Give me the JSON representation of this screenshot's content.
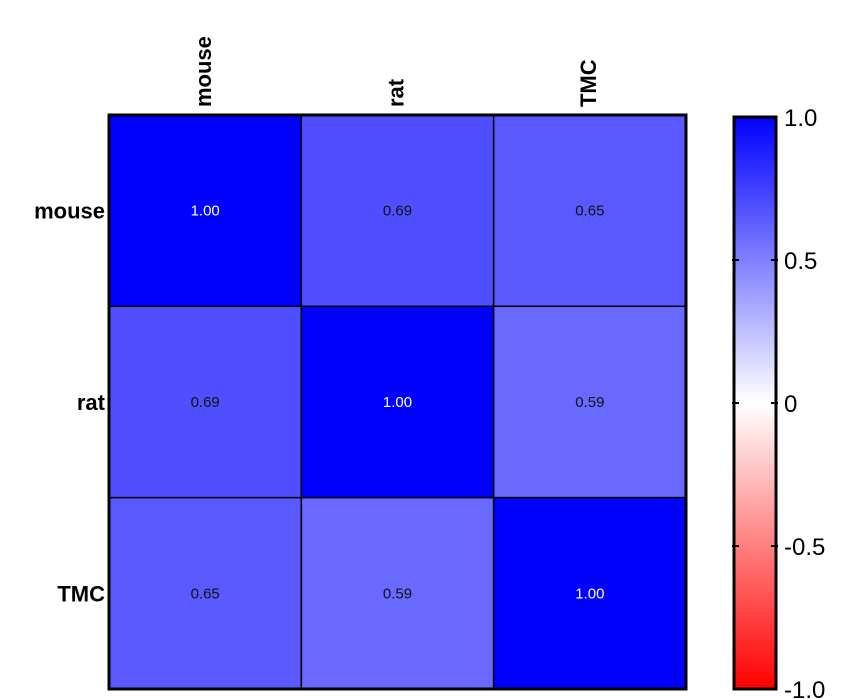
{
  "chart_data": {
    "type": "heatmap",
    "title": "",
    "xlabel": "",
    "ylabel": "",
    "x_categories": [
      "mouse",
      "rat",
      "TMC"
    ],
    "y_categories": [
      "mouse",
      "rat",
      "TMC"
    ],
    "values": [
      [
        1.0,
        0.69,
        0.65
      ],
      [
        0.69,
        1.0,
        0.59
      ],
      [
        0.65,
        0.59,
        1.0
      ]
    ],
    "cell_labels": [
      [
        "1.00",
        "0.69",
        "0.65"
      ],
      [
        "0.69",
        "1.00",
        "0.59"
      ],
      [
        "0.65",
        "0.59",
        "1.00"
      ]
    ],
    "colorbar": {
      "range": [
        -1.0,
        1.0
      ],
      "ticks": [
        1.0,
        0.5,
        0,
        -0.5,
        -1.0
      ],
      "tick_labels": [
        "1.0",
        "0.5",
        "0",
        "-0.5",
        "-1.0"
      ],
      "colors": {
        "max": "#0000ff",
        "mid": "#ffffff",
        "min": "#ff0000"
      }
    },
    "grid": true,
    "legend": "right"
  }
}
